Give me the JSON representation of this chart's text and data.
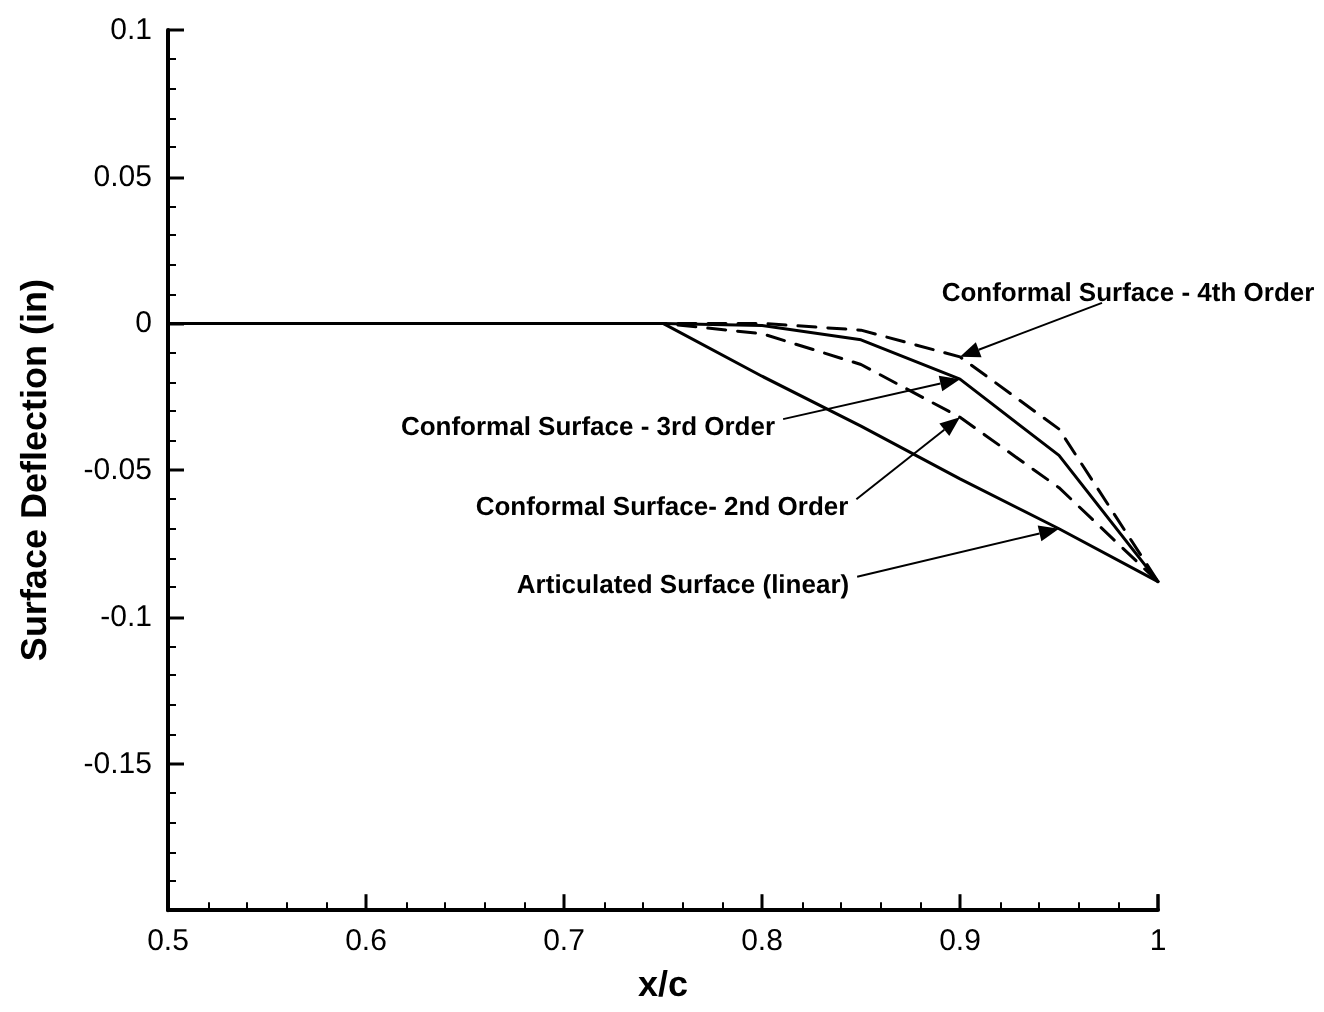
{
  "chart_data": {
    "type": "line",
    "xlabel": "x/c",
    "ylabel": "Surface Deflection (in)",
    "x": [
      0.5,
      0.75,
      0.8,
      0.85,
      0.9,
      0.95,
      1
    ],
    "series": [
      {
        "color": "#000000",
        "line_style": "solid",
        "values": [
          0,
          0,
          -0.018,
          -0.035,
          -0.053,
          -0.07,
          -0.088
        ]
      },
      {
        "color": "#000000",
        "line_style": "dashed",
        "values": [
          0,
          0,
          -0.0035,
          -0.014,
          -0.032,
          -0.056,
          -0.088
        ]
      },
      {
        "color": "#000000",
        "line_style": "solid",
        "values": [
          0,
          0,
          -0.0007,
          -0.0056,
          -0.019,
          -0.045,
          -0.088
        ]
      },
      {
        "color": "#000000",
        "line_style": "dashed",
        "values": [
          0,
          0,
          0,
          -0.0023,
          -0.0114,
          -0.036,
          -0.088
        ]
      }
    ],
    "xlim": [
      0.5,
      1
    ],
    "xticks": [
      0.5,
      0.6,
      0.7,
      0.8,
      0.9,
      1
    ],
    "ylim": [
      -0.2,
      0.1
    ],
    "yticks": [
      {
        "value": -0.2,
        "label": null
      },
      -0.15,
      -0.1,
      -0.05,
      0,
      0.05,
      0.1
    ],
    "annotations": [
      "Conformal Surface - 4th Order",
      "Conformal Surface - 3rd Order",
      "Conformal  Surface- 2nd Order",
      "Articulated Surface (linear)"
    ],
    "marker": "none"
  }
}
